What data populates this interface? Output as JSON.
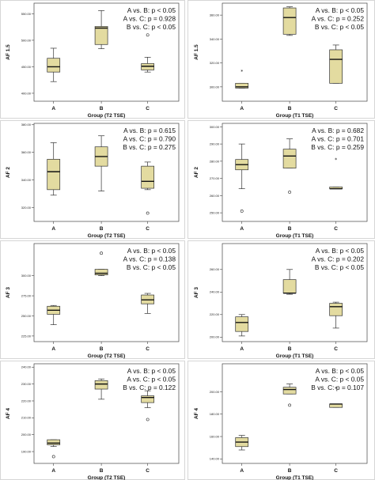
{
  "box_color": "#e3dba0",
  "box_stroke": "#333333",
  "chart_data": [
    {
      "type": "box",
      "xlabel": "Group (T2 TSE)",
      "ylabel": "AF 1.5",
      "yticks": [
        "400.00",
        "450.00",
        "500.00",
        "550.00"
      ],
      "ylim": [
        385,
        570
      ],
      "categories": [
        "A",
        "B",
        "C"
      ],
      "boxes": [
        {
          "min": 422,
          "q1": 440,
          "median": 450,
          "q3": 466,
          "max": 485
        },
        {
          "min": 484,
          "q1": 492,
          "median": 523,
          "q3": 526,
          "max": 556
        },
        {
          "min": 440,
          "q1": 444,
          "median": 451,
          "q3": 456,
          "max": 468
        }
      ],
      "outliers": [
        {
          "cat": "C",
          "value": 510,
          "symbol": "circle"
        }
      ],
      "annotations": [
        "A vs. B: p < 0.05",
        "A vs. C: p = 0.928",
        "B vs. C: p < 0.05"
      ]
    },
    {
      "type": "box",
      "xlabel": "Group (T1 TSE)",
      "ylabel": "AF 1.5",
      "yticks": [
        "300.00",
        "320.00",
        "340.00",
        "360.00"
      ],
      "ylim": [
        288,
        370
      ],
      "categories": [
        "A",
        "B",
        "C"
      ],
      "boxes": [
        {
          "min": 299,
          "q1": 299,
          "median": 300,
          "q3": 303,
          "max": 303
        },
        {
          "min": 343,
          "q1": 344,
          "median": 358,
          "q3": 366,
          "max": 367
        },
        {
          "min": 303,
          "q1": 303,
          "median": 323,
          "q3": 331,
          "max": 335
        }
      ],
      "outliers": [
        {
          "cat": "A",
          "value": 313,
          "symbol": "star"
        }
      ],
      "annotations": [
        "A vs. B: p < 0.05",
        "A vs. C: p = 0.252",
        "B vs. C: p < 0.05"
      ]
    },
    {
      "type": "box",
      "xlabel": "Group (T2 TSE)",
      "ylabel": "AF 2",
      "yticks": [
        "320.00",
        "340.00",
        "360.00",
        "380.00"
      ],
      "ylim": [
        310,
        381
      ],
      "categories": [
        "A",
        "B",
        "C"
      ],
      "boxes": [
        {
          "min": 329,
          "q1": 333,
          "median": 346,
          "q3": 355,
          "max": 367
        },
        {
          "min": 332,
          "q1": 350,
          "median": 357,
          "q3": 364,
          "max": 372
        },
        {
          "min": 333,
          "q1": 334,
          "median": 339,
          "q3": 350,
          "max": 353
        }
      ],
      "outliers": [
        {
          "cat": "C",
          "value": 316,
          "symbol": "circle"
        }
      ],
      "annotations": [
        "A vs. B: p = 0.615",
        "A vs. C: p = 0.790",
        "B vs. C: p = 0.275"
      ]
    },
    {
      "type": "box",
      "xlabel": "Group (T1 TSE)",
      "ylabel": "AF 2",
      "yticks": [
        "250.00",
        "260.00",
        "270.00",
        "280.00",
        "290.00",
        "300.00"
      ],
      "ylim": [
        245,
        302
      ],
      "categories": [
        "A",
        "B",
        "C"
      ],
      "boxes": [
        {
          "min": 264,
          "q1": 275,
          "median": 278,
          "q3": 281,
          "max": 290
        },
        {
          "min": 276,
          "q1": 276,
          "median": 283,
          "q3": 287,
          "max": 293
        },
        {
          "min": 264,
          "q1": 264,
          "median": 264,
          "q3": 265,
          "max": 265
        }
      ],
      "outliers": [
        {
          "cat": "A",
          "value": 251,
          "symbol": "circle"
        },
        {
          "cat": "B",
          "value": 262,
          "symbol": "circle"
        },
        {
          "cat": "C",
          "value": 281,
          "symbol": "star"
        }
      ],
      "annotations": [
        "A vs. B: p = 0.682",
        "A vs. C: p = 0.701",
        "B vs. C: p = 0.259"
      ]
    },
    {
      "type": "box",
      "xlabel": "Group (T2 TSE)",
      "ylabel": "AF 3",
      "yticks": [
        "225.00",
        "250.00",
        "275.00",
        "300.00"
      ],
      "ylim": [
        218,
        340
      ],
      "categories": [
        "A",
        "B",
        "C"
      ],
      "boxes": [
        {
          "min": 239,
          "q1": 252,
          "median": 257,
          "q3": 262,
          "max": 263
        },
        {
          "min": 300,
          "q1": 301,
          "median": 303,
          "q3": 308,
          "max": 308
        },
        {
          "min": 253,
          "q1": 265,
          "median": 270,
          "q3": 276,
          "max": 278
        }
      ],
      "outliers": [
        {
          "cat": "B",
          "value": 328,
          "symbol": "circle"
        }
      ],
      "annotations": [
        "A vs. B: p < 0.05",
        "A vs. C: p = 0.138",
        "B vs. C: p < 0.05"
      ]
    },
    {
      "type": "box",
      "xlabel": "Group (T1 TSE)",
      "ylabel": "AF 3",
      "yticks": [
        "200.00",
        "220.00",
        "240.00",
        "260.00"
      ],
      "ylim": [
        196,
        283
      ],
      "categories": [
        "A",
        "B",
        "C"
      ],
      "boxes": [
        {
          "min": 201,
          "q1": 205,
          "median": 213,
          "q3": 218,
          "max": 220
        },
        {
          "min": 238,
          "q1": 239,
          "median": 239,
          "q3": 251,
          "max": 260
        },
        {
          "min": 208,
          "q1": 219,
          "median": 227,
          "q3": 230,
          "max": 231
        }
      ],
      "outliers": [],
      "annotations": [
        "A vs. B: p < 0.05",
        "A vs. C: p = 0.202",
        "B vs. C: p < 0.05"
      ]
    },
    {
      "type": "box",
      "xlabel": "Group (T2 TSE)",
      "ylabel": "AF 4",
      "yticks": [
        "190.00",
        "200.00",
        "210.00",
        "220.00",
        "230.00",
        "240.00"
      ],
      "ylim": [
        183,
        242
      ],
      "categories": [
        "A",
        "B",
        "C"
      ],
      "boxes": [
        {
          "min": 193,
          "q1": 194,
          "median": 195,
          "q3": 197,
          "max": 197
        },
        {
          "min": 221,
          "q1": 227,
          "median": 230,
          "q3": 232,
          "max": 233
        },
        {
          "min": 216,
          "q1": 219,
          "median": 222,
          "q3": 223,
          "max": 226
        }
      ],
      "outliers": [
        {
          "cat": "A",
          "value": 187,
          "symbol": "circle"
        },
        {
          "cat": "C",
          "value": 209,
          "symbol": "circle"
        }
      ],
      "annotations": [
        "A vs. B: p < 0.05",
        "A vs. C: p < 0.05",
        "B vs. C: p = 0.122"
      ]
    },
    {
      "type": "box",
      "xlabel": "Group (T1 TSE)",
      "ylabel": "AF 4",
      "yticks": [
        "140.00",
        "160.00",
        "180.00",
        "200.00"
      ],
      "ylim": [
        136,
        225
      ],
      "categories": [
        "A",
        "B",
        "C"
      ],
      "boxes": [
        {
          "min": 148,
          "q1": 151,
          "median": 155,
          "q3": 159,
          "max": 161
        },
        {
          "min": 198,
          "q1": 198,
          "median": 202,
          "q3": 204,
          "max": 207
        },
        {
          "min": 186,
          "q1": 186,
          "median": 189,
          "q3": 189,
          "max": 189
        }
      ],
      "outliers": [
        {
          "cat": "B",
          "value": 188,
          "symbol": "circle"
        },
        {
          "cat": "C",
          "value": 203,
          "symbol": "star"
        }
      ],
      "annotations": [
        "A vs. B: p < 0.05",
        "A vs. C: p < 0.05",
        "B vs. C: p = 0.107"
      ]
    }
  ]
}
